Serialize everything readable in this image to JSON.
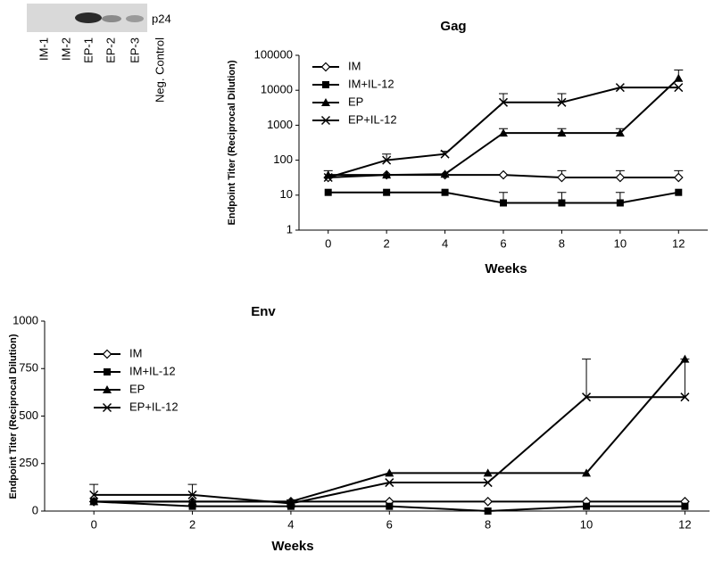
{
  "blot": {
    "label": "p24",
    "lanes": [
      "IM-1",
      "IM-2",
      "EP-1",
      "EP-2",
      "EP-3",
      "Neg. Control"
    ]
  },
  "chart_data": [
    {
      "type": "line",
      "title": "Gag",
      "x_label": "Weeks",
      "y_label": "Endpoint Titer (Reciprocal Dilution)",
      "yscale": "log",
      "x": [
        0,
        2,
        4,
        6,
        8,
        10,
        12
      ],
      "xlim": [
        -1,
        13
      ],
      "xticks": [
        0,
        2,
        4,
        6,
        8,
        10,
        12
      ],
      "ylim": [
        1,
        100000
      ],
      "yticks": [
        1,
        10,
        100,
        1000,
        10000,
        100000
      ],
      "legend": "upper left",
      "series": [
        {
          "name": "IM",
          "color": "#000000",
          "marker": "diamond-open",
          "values": [
            32,
            38,
            38,
            38,
            32,
            32,
            32
          ],
          "errors": [
            18,
            null,
            null,
            null,
            18,
            18,
            18
          ]
        },
        {
          "name": "IM+IL-12",
          "color": "#000000",
          "marker": "square",
          "values": [
            12,
            12,
            12,
            6,
            6,
            6,
            12
          ],
          "errors": [
            null,
            null,
            null,
            6,
            6,
            6,
            null
          ]
        },
        {
          "name": "EP",
          "color": "#000000",
          "marker": "triangle",
          "values": [
            38,
            38,
            40,
            600,
            600,
            600,
            22000
          ],
          "errors": [
            null,
            null,
            null,
            200,
            200,
            200,
            16000
          ]
        },
        {
          "name": "EP+IL-12",
          "color": "#000000",
          "marker": "x",
          "values": [
            32,
            100,
            150,
            4500,
            4500,
            12000,
            12000
          ],
          "errors": [
            null,
            50,
            30,
            3500,
            3500,
            null,
            null
          ]
        }
      ]
    },
    {
      "type": "line",
      "title": "Env",
      "x_label": "Weeks",
      "y_label": "Endpoint Titer (Reciprocal Dilution)",
      "yscale": "linear",
      "x": [
        0,
        2,
        4,
        6,
        8,
        10,
        12
      ],
      "xlim": [
        -1,
        12.5
      ],
      "xticks": [
        0,
        2,
        4,
        6,
        8,
        10,
        12
      ],
      "ylim": [
        0,
        1000
      ],
      "yticks": [
        0,
        250,
        500,
        750,
        1000
      ],
      "legend": "upper left",
      "series": [
        {
          "name": "IM",
          "color": "#000000",
          "marker": "diamond-open",
          "values": [
            50,
            50,
            50,
            50,
            50,
            50,
            50
          ],
          "errors": [
            null,
            null,
            null,
            null,
            null,
            null,
            null
          ]
        },
        {
          "name": "IM+IL-12",
          "color": "#000000",
          "marker": "square",
          "values": [
            50,
            25,
            25,
            25,
            0,
            25,
            25
          ],
          "errors": [
            null,
            null,
            null,
            null,
            null,
            null,
            null
          ]
        },
        {
          "name": "EP",
          "color": "#000000",
          "marker": "triangle",
          "values": [
            50,
            50,
            50,
            200,
            200,
            200,
            800
          ],
          "errors": [
            null,
            null,
            null,
            null,
            null,
            null,
            null
          ]
        },
        {
          "name": "EP+IL-12",
          "color": "#000000",
          "marker": "x",
          "values": [
            85,
            85,
            40,
            150,
            150,
            600,
            600
          ],
          "errors": [
            55,
            55,
            null,
            null,
            null,
            200,
            200
          ]
        }
      ]
    }
  ]
}
